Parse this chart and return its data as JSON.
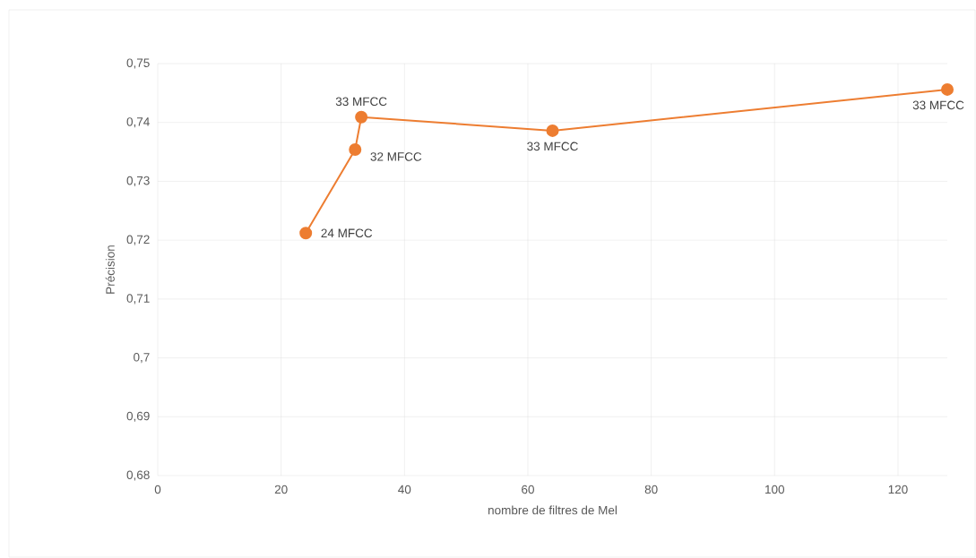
{
  "chart_data": {
    "type": "line",
    "xlabel": "nombre de filtres de Mel",
    "ylabel": "Précision",
    "x": [
      24,
      32,
      33,
      64,
      128
    ],
    "series": [
      {
        "color": "#ed7d31",
        "values": [
          0.7212,
          0.7354,
          0.7409,
          0.7386,
          0.7456
        ]
      }
    ],
    "marker": "circle",
    "grid": true,
    "xlim": [
      0,
      128
    ],
    "xticks": [
      0,
      20,
      40,
      60,
      80,
      100,
      120
    ],
    "ylim": [
      0.68,
      0.75
    ],
    "yticks": [
      {
        "value": 0.68,
        "label": "0,68"
      },
      {
        "value": 0.69,
        "label": "0,69"
      },
      {
        "value": 0.7,
        "label": "0,7"
      },
      {
        "value": 0.71,
        "label": "0,71"
      },
      {
        "value": 0.72,
        "label": "0,72"
      },
      {
        "value": 0.73,
        "label": "0,73"
      },
      {
        "value": 0.74,
        "label": "0,74"
      },
      {
        "value": 0.75,
        "label": "0,75"
      }
    ],
    "annotations": [
      {
        "text": "24 MFCC",
        "x": 24,
        "y": 0.7212
      },
      {
        "text": "32 MFCC",
        "x": 32,
        "y": 0.7354
      },
      {
        "text": "33 MFCC",
        "x": 33,
        "y": 0.7409
      },
      {
        "text": "33 MFCC",
        "x": 64,
        "y": 0.7386
      },
      {
        "text": "33 MFCC",
        "x": 128,
        "y": 0.7456
      }
    ]
  }
}
